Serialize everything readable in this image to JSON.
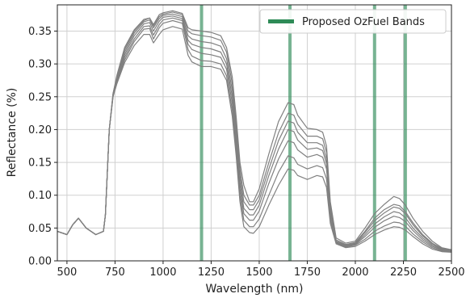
{
  "chart_data": {
    "type": "line",
    "title": "",
    "xlabel": "Wavelength (nm)",
    "ylabel": "Reflectance (%)",
    "xlim": [
      450,
      2500
    ],
    "ylim": [
      0.0,
      0.39
    ],
    "x_ticks": [
      500,
      750,
      1000,
      1250,
      1500,
      1750,
      2000,
      2250,
      2500
    ],
    "x_tick_labels": [
      "500",
      "750",
      "1000",
      "1250",
      "1500",
      "1750",
      "2000",
      "2250",
      "2500"
    ],
    "y_ticks": [
      0.0,
      0.05,
      0.1,
      0.15,
      0.2,
      0.25,
      0.3,
      0.35
    ],
    "y_tick_labels": [
      "0.00",
      "0.05",
      "0.10",
      "0.15",
      "0.20",
      "0.25",
      "0.30",
      "0.35"
    ],
    "grid": true,
    "legend": {
      "placement": "top-right",
      "entries": [
        {
          "label": "Proposed OzFuel Bands",
          "color": "#2e8b57"
        }
      ]
    },
    "bands": {
      "name": "Proposed OzFuel Bands",
      "color": "#2e8b57",
      "wavelengths": [
        1200,
        1660,
        2100,
        2260
      ]
    },
    "line_color": "#808080",
    "x": [
      450,
      500,
      530,
      560,
      600,
      650,
      690,
      700,
      720,
      740,
      760,
      800,
      850,
      900,
      930,
      950,
      980,
      1000,
      1050,
      1100,
      1130,
      1150,
      1200,
      1250,
      1300,
      1330,
      1360,
      1380,
      1400,
      1420,
      1450,
      1470,
      1500,
      1550,
      1600,
      1650,
      1680,
      1700,
      1750,
      1800,
      1830,
      1850,
      1870,
      1900,
      1950,
      2000,
      2050,
      2100,
      2150,
      2200,
      2230,
      2260,
      2300,
      2350,
      2400,
      2450,
      2500
    ],
    "series": [
      {
        "values": [
          0.045,
          0.04,
          0.055,
          0.065,
          0.05,
          0.04,
          0.045,
          0.07,
          0.2,
          0.255,
          0.283,
          0.325,
          0.352,
          0.368,
          0.37,
          0.36,
          0.375,
          0.378,
          0.381,
          0.377,
          0.355,
          0.352,
          0.35,
          0.348,
          0.343,
          0.325,
          0.28,
          0.22,
          0.15,
          0.115,
          0.09,
          0.09,
          0.11,
          0.163,
          0.212,
          0.241,
          0.238,
          0.222,
          0.202,
          0.2,
          0.196,
          0.175,
          0.09,
          0.035,
          0.027,
          0.03,
          0.05,
          0.072,
          0.086,
          0.098,
          0.095,
          0.085,
          0.065,
          0.045,
          0.03,
          0.02,
          0.017
        ]
      },
      {
        "values": [
          0.045,
          0.04,
          0.055,
          0.065,
          0.05,
          0.04,
          0.045,
          0.07,
          0.2,
          0.255,
          0.28,
          0.322,
          0.35,
          0.366,
          0.37,
          0.358,
          0.372,
          0.376,
          0.379,
          0.375,
          0.35,
          0.346,
          0.343,
          0.341,
          0.336,
          0.318,
          0.27,
          0.21,
          0.14,
          0.1,
          0.085,
          0.085,
          0.1,
          0.15,
          0.195,
          0.225,
          0.222,
          0.208,
          0.19,
          0.19,
          0.186,
          0.165,
          0.085,
          0.032,
          0.025,
          0.028,
          0.045,
          0.065,
          0.078,
          0.086,
          0.084,
          0.075,
          0.058,
          0.04,
          0.027,
          0.019,
          0.016
        ]
      },
      {
        "values": [
          0.045,
          0.04,
          0.055,
          0.065,
          0.05,
          0.04,
          0.045,
          0.07,
          0.2,
          0.254,
          0.278,
          0.318,
          0.347,
          0.364,
          0.367,
          0.355,
          0.369,
          0.374,
          0.376,
          0.372,
          0.343,
          0.338,
          0.334,
          0.332,
          0.327,
          0.308,
          0.26,
          0.2,
          0.13,
          0.09,
          0.078,
          0.078,
          0.093,
          0.14,
          0.183,
          0.213,
          0.21,
          0.196,
          0.18,
          0.18,
          0.176,
          0.155,
          0.08,
          0.03,
          0.024,
          0.027,
          0.043,
          0.061,
          0.073,
          0.082,
          0.08,
          0.072,
          0.055,
          0.038,
          0.026,
          0.018,
          0.016
        ]
      },
      {
        "values": [
          0.045,
          0.04,
          0.055,
          0.065,
          0.05,
          0.04,
          0.045,
          0.07,
          0.2,
          0.253,
          0.276,
          0.314,
          0.343,
          0.361,
          0.363,
          0.35,
          0.365,
          0.371,
          0.373,
          0.369,
          0.336,
          0.33,
          0.325,
          0.323,
          0.318,
          0.3,
          0.25,
          0.19,
          0.12,
          0.08,
          0.07,
          0.07,
          0.085,
          0.13,
          0.17,
          0.2,
          0.197,
          0.184,
          0.17,
          0.172,
          0.168,
          0.148,
          0.075,
          0.029,
          0.023,
          0.026,
          0.04,
          0.056,
          0.067,
          0.075,
          0.073,
          0.066,
          0.05,
          0.035,
          0.024,
          0.017,
          0.015
        ]
      },
      {
        "values": [
          0.045,
          0.04,
          0.055,
          0.065,
          0.05,
          0.04,
          0.045,
          0.07,
          0.2,
          0.252,
          0.274,
          0.31,
          0.338,
          0.357,
          0.358,
          0.344,
          0.36,
          0.367,
          0.37,
          0.366,
          0.33,
          0.322,
          0.316,
          0.314,
          0.31,
          0.292,
          0.24,
          0.18,
          0.11,
          0.072,
          0.062,
          0.062,
          0.076,
          0.118,
          0.155,
          0.183,
          0.18,
          0.169,
          0.158,
          0.162,
          0.158,
          0.14,
          0.07,
          0.028,
          0.022,
          0.025,
          0.037,
          0.051,
          0.061,
          0.068,
          0.066,
          0.06,
          0.046,
          0.032,
          0.022,
          0.016,
          0.015
        ]
      },
      {
        "values": [
          0.045,
          0.04,
          0.055,
          0.065,
          0.05,
          0.04,
          0.045,
          0.07,
          0.2,
          0.251,
          0.272,
          0.306,
          0.334,
          0.353,
          0.354,
          0.338,
          0.355,
          0.362,
          0.366,
          0.362,
          0.322,
          0.312,
          0.305,
          0.304,
          0.3,
          0.282,
          0.23,
          0.17,
          0.1,
          0.062,
          0.052,
          0.052,
          0.064,
          0.1,
          0.135,
          0.16,
          0.157,
          0.147,
          0.14,
          0.145,
          0.142,
          0.125,
          0.063,
          0.027,
          0.021,
          0.024,
          0.033,
          0.045,
          0.053,
          0.059,
          0.058,
          0.053,
          0.041,
          0.029,
          0.02,
          0.015,
          0.014
        ]
      },
      {
        "values": [
          0.045,
          0.04,
          0.055,
          0.065,
          0.05,
          0.04,
          0.045,
          0.07,
          0.2,
          0.25,
          0.27,
          0.302,
          0.328,
          0.345,
          0.345,
          0.332,
          0.345,
          0.352,
          0.357,
          0.353,
          0.313,
          0.303,
          0.296,
          0.296,
          0.292,
          0.275,
          0.22,
          0.16,
          0.09,
          0.052,
          0.043,
          0.042,
          0.052,
          0.085,
          0.115,
          0.14,
          0.138,
          0.13,
          0.124,
          0.13,
          0.128,
          0.112,
          0.057,
          0.026,
          0.02,
          0.022,
          0.03,
          0.04,
          0.047,
          0.052,
          0.051,
          0.047,
          0.037,
          0.026,
          0.018,
          0.014,
          0.013
        ]
      }
    ]
  }
}
